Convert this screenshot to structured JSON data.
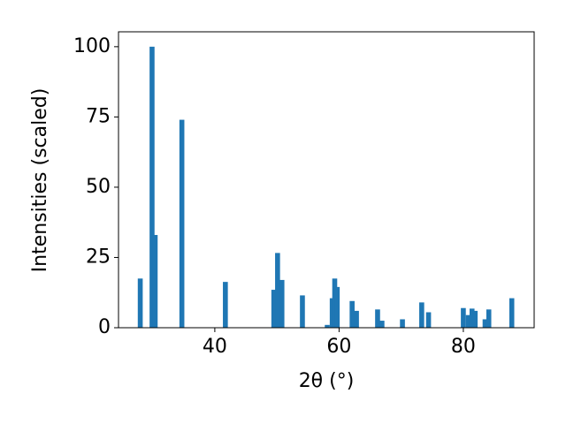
{
  "chart_data": {
    "type": "bar",
    "xlabel": "2θ (°)",
    "ylabel": "Intensities (scaled)",
    "x": [
      28.0,
      29.9,
      30.4,
      34.7,
      41.7,
      49.5,
      50.1,
      50.8,
      54.1,
      58.1,
      58.9,
      59.3,
      59.7,
      62.1,
      62.8,
      66.2,
      66.9,
      70.2,
      73.3,
      74.4,
      80.0,
      80.8,
      81.4,
      81.9,
      83.5,
      84.1,
      87.8
    ],
    "values": [
      17.5,
      100,
      33,
      74,
      16.3,
      13.5,
      26.6,
      17,
      11.5,
      1,
      10.5,
      17.5,
      14.5,
      9.5,
      6,
      6.5,
      2.5,
      3,
      9,
      5.5,
      7,
      4.5,
      6.8,
      6,
      3,
      6.5,
      10.5
    ],
    "color": "#1f77b4",
    "xlim": [
      24.5,
      91.4
    ],
    "xticks": [
      40,
      60,
      80
    ],
    "ylim": [
      0,
      105.3
    ],
    "yticks": [
      0,
      25,
      50,
      75,
      100
    ],
    "grid": false
  }
}
